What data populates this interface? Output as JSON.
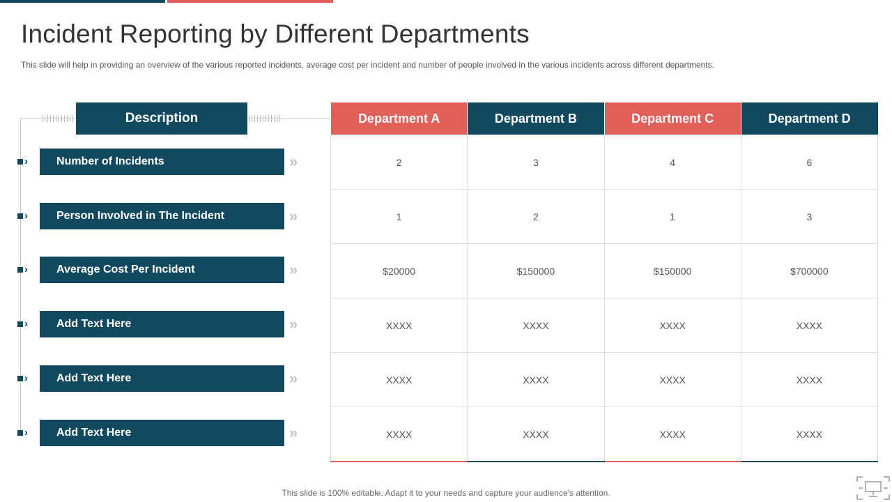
{
  "slide": {
    "title": "Incident Reporting by Different Departments",
    "subtitle": "This slide will help in providing  an overview  of the various  reported  incidents, average  cost per incident and  number of people involved  in the various  incidents across different  departments.",
    "footer": "This slide is 100% editable. Adapt it to your needs and capture your audience's attention."
  },
  "description": {
    "header": "Description",
    "rows": [
      "Number of Incidents",
      "Person Involved in The Incident",
      "Average Cost  Per Incident",
      "Add Text Here",
      "Add Text Here",
      "Add Text Here"
    ],
    "bullet_glyph": "›",
    "arrow_glyph": "»"
  },
  "table": {
    "columns": [
      "Department A",
      "Department B",
      "Department C",
      "Department D"
    ],
    "rows": [
      [
        "2",
        "3",
        "4",
        "6"
      ],
      [
        "1",
        "2",
        "1",
        "3"
      ],
      [
        "$20000",
        "$150000",
        "$150000",
        "$700000"
      ],
      [
        "XXXX",
        "XXXX",
        "XXXX",
        "XXXX"
      ],
      [
        "XXXX",
        "XXXX",
        "XXXX",
        "XXXX"
      ],
      [
        "XXXX",
        "XXXX",
        "XXXX",
        "XXXX"
      ]
    ]
  },
  "colors": {
    "navy": "#12495f",
    "coral": "#e2605a"
  },
  "icons": {
    "corner": "presentation-screen-icon"
  }
}
